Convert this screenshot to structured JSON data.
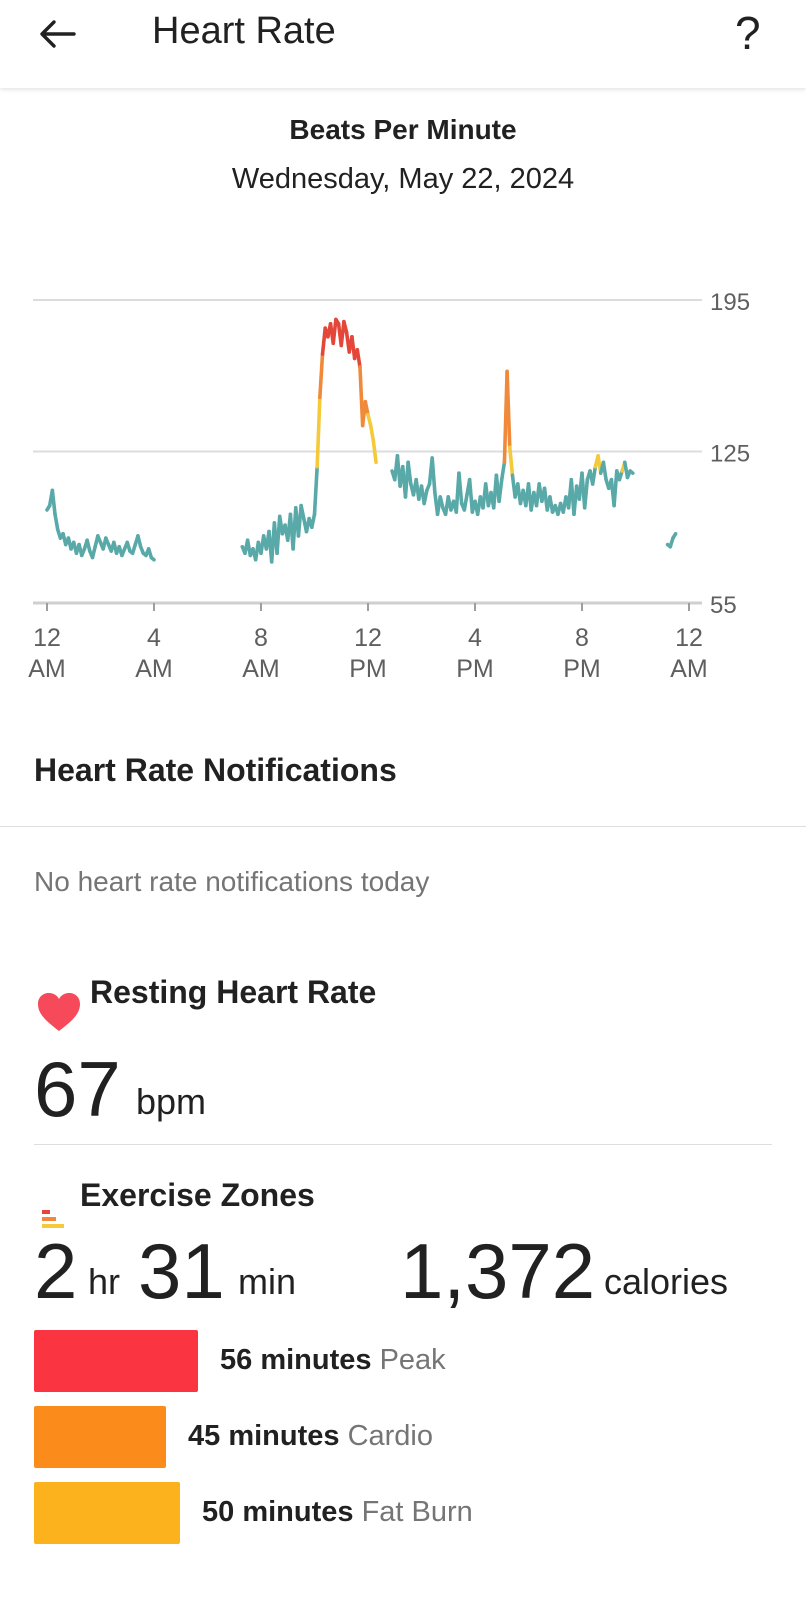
{
  "header": {
    "title": "Heart Rate",
    "help_label": "?"
  },
  "chart_header": {
    "title": "Beats Per Minute",
    "date": "Wednesday, May 22, 2024"
  },
  "chart_data": {
    "type": "line",
    "title": "Beats Per Minute",
    "xlabel": "",
    "ylabel": "",
    "xlim": [
      0,
      24
    ],
    "ylim": [
      55,
      195
    ],
    "y_ticks": [
      195,
      125,
      55
    ],
    "x_tick_labels": [
      {
        "top": "12",
        "bottom": "AM"
      },
      {
        "top": "4",
        "bottom": "AM"
      },
      {
        "top": "8",
        "bottom": "AM"
      },
      {
        "top": "12",
        "bottom": "PM"
      },
      {
        "top": "4",
        "bottom": "PM"
      },
      {
        "top": "8",
        "bottom": "PM"
      },
      {
        "top": "12",
        "bottom": "AM"
      }
    ],
    "grid": true,
    "zone_colors": {
      "normal": "#5aa9a9",
      "fat_burn": "#f4c93a",
      "cardio": "#f08a3a",
      "peak": "#e4473a"
    },
    "series": [
      {
        "points": [
          [
            0,
            98
          ],
          [
            0.1,
            100
          ],
          [
            0.2,
            107
          ],
          [
            0.3,
            96
          ],
          [
            0.4,
            89
          ],
          [
            0.5,
            85
          ],
          [
            0.6,
            87
          ],
          [
            0.7,
            82
          ],
          [
            0.8,
            85
          ],
          [
            0.9,
            80
          ],
          [
            1.0,
            83
          ],
          [
            1.1,
            78
          ],
          [
            1.2,
            82
          ],
          [
            1.3,
            77
          ],
          [
            1.4,
            80
          ],
          [
            1.5,
            84
          ],
          [
            1.6,
            79
          ],
          [
            1.7,
            76
          ],
          [
            1.8,
            81
          ],
          [
            1.9,
            86
          ],
          [
            2.0,
            83
          ],
          [
            2.1,
            80
          ],
          [
            2.2,
            85
          ],
          [
            2.3,
            82
          ],
          [
            2.4,
            79
          ],
          [
            2.5,
            83
          ],
          [
            2.6,
            78
          ],
          [
            2.7,
            81
          ],
          [
            2.8,
            77
          ],
          [
            2.9,
            80
          ],
          [
            3.0,
            83
          ],
          [
            3.1,
            79
          ],
          [
            3.2,
            78
          ],
          [
            3.3,
            82
          ],
          [
            3.4,
            86
          ],
          [
            3.5,
            81
          ],
          [
            3.6,
            78
          ],
          [
            3.7,
            77
          ],
          [
            3.8,
            80
          ],
          [
            3.9,
            76
          ],
          [
            4.0,
            75
          ]
        ]
      },
      {
        "points": [
          [
            7.3,
            81
          ],
          [
            7.4,
            78
          ],
          [
            7.5,
            84
          ],
          [
            7.6,
            77
          ],
          [
            7.7,
            80
          ],
          [
            7.8,
            75
          ],
          [
            7.9,
            83
          ],
          [
            8.0,
            78
          ],
          [
            8.1,
            86
          ],
          [
            8.2,
            80
          ],
          [
            8.3,
            88
          ],
          [
            8.4,
            74
          ],
          [
            8.5,
            92
          ],
          [
            8.6,
            78
          ],
          [
            8.7,
            95
          ],
          [
            8.8,
            87
          ],
          [
            8.9,
            91
          ],
          [
            9.0,
            84
          ],
          [
            9.1,
            96
          ],
          [
            9.2,
            80
          ],
          [
            9.3,
            99
          ],
          [
            9.4,
            86
          ],
          [
            9.5,
            100
          ],
          [
            9.6,
            94
          ],
          [
            9.7,
            88
          ],
          [
            9.8,
            94
          ],
          [
            9.9,
            90
          ],
          [
            10.0,
            96
          ],
          [
            10.1,
            118
          ],
          [
            10.2,
            150
          ],
          [
            10.3,
            170
          ],
          [
            10.4,
            182
          ],
          [
            10.5,
            178
          ],
          [
            10.6,
            184
          ],
          [
            10.7,
            175
          ],
          [
            10.8,
            186
          ],
          [
            10.9,
            184
          ],
          [
            11.0,
            174
          ],
          [
            11.1,
            185
          ],
          [
            11.2,
            180
          ],
          [
            11.3,
            171
          ],
          [
            11.4,
            178
          ],
          [
            11.5,
            168
          ],
          [
            11.6,
            172
          ],
          [
            11.7,
            164
          ],
          [
            11.8,
            137
          ],
          [
            11.9,
            148
          ],
          [
            12.0,
            142
          ],
          [
            12.1,
            137
          ],
          [
            12.2,
            130
          ],
          [
            12.3,
            120
          ]
        ]
      },
      {
        "points": [
          [
            12.9,
            116
          ],
          [
            13.0,
            112
          ],
          [
            13.1,
            123
          ],
          [
            13.2,
            109
          ],
          [
            13.3,
            118
          ],
          [
            13.4,
            104
          ],
          [
            13.5,
            120
          ],
          [
            13.6,
            110
          ],
          [
            13.7,
            105
          ],
          [
            13.8,
            112
          ],
          [
            13.9,
            103
          ],
          [
            14.0,
            109
          ],
          [
            14.1,
            101
          ],
          [
            14.2,
            107
          ],
          [
            14.3,
            110
          ],
          [
            14.4,
            122
          ],
          [
            14.5,
            106
          ],
          [
            14.6,
            96
          ],
          [
            14.7,
            104
          ],
          [
            14.8,
            99
          ],
          [
            14.9,
            96
          ],
          [
            15.0,
            104
          ],
          [
            15.1,
            98
          ],
          [
            15.2,
            102
          ],
          [
            15.3,
            97
          ],
          [
            15.4,
            115
          ],
          [
            15.5,
            101
          ],
          [
            15.6,
            98
          ],
          [
            15.7,
            105
          ],
          [
            15.8,
            112
          ],
          [
            15.9,
            97
          ],
          [
            16.0,
            102
          ],
          [
            16.1,
            96
          ],
          [
            16.2,
            104
          ],
          [
            16.3,
            99
          ],
          [
            16.4,
            110
          ],
          [
            16.5,
            100
          ],
          [
            16.6,
            106
          ],
          [
            16.7,
            99
          ],
          [
            16.8,
            114
          ],
          [
            16.9,
            102
          ],
          [
            17.0,
            112
          ],
          [
            17.1,
            120
          ],
          [
            17.2,
            162
          ],
          [
            17.3,
            127
          ],
          [
            17.4,
            114
          ],
          [
            17.5,
            104
          ],
          [
            17.6,
            110
          ],
          [
            17.7,
            101
          ],
          [
            17.8,
            107
          ],
          [
            17.9,
            100
          ],
          [
            18.0,
            110
          ],
          [
            18.1,
            98
          ],
          [
            18.2,
            106
          ],
          [
            18.3,
            100
          ],
          [
            18.4,
            110
          ],
          [
            18.5,
            102
          ],
          [
            18.6,
            108
          ],
          [
            18.7,
            98
          ],
          [
            18.8,
            104
          ],
          [
            18.9,
            97
          ],
          [
            19.0,
            100
          ],
          [
            19.1,
            96
          ],
          [
            19.2,
            101
          ],
          [
            19.3,
            97
          ],
          [
            19.4,
            104
          ],
          [
            19.5,
            99
          ],
          [
            19.6,
            112
          ],
          [
            19.7,
            96
          ],
          [
            19.8,
            109
          ],
          [
            19.9,
            103
          ],
          [
            20.0,
            115
          ],
          [
            20.1,
            99
          ],
          [
            20.2,
            112
          ],
          [
            20.3,
            116
          ],
          [
            20.4,
            110
          ],
          [
            20.5,
            118
          ],
          [
            20.6,
            123
          ],
          [
            20.7,
            115
          ],
          [
            20.8,
            120
          ],
          [
            20.9,
            112
          ],
          [
            21.0,
            108
          ],
          [
            21.1,
            112
          ],
          [
            21.2,
            100
          ],
          [
            21.3,
            116
          ],
          [
            21.4,
            112
          ],
          [
            21.5,
            116
          ],
          [
            21.6,
            120
          ],
          [
            21.7,
            113
          ],
          [
            21.8,
            116
          ],
          [
            21.9,
            115
          ]
        ]
      },
      {
        "points": [
          [
            23.2,
            82
          ],
          [
            23.3,
            81
          ],
          [
            23.4,
            85
          ],
          [
            23.5,
            87
          ]
        ]
      }
    ]
  },
  "notifications": {
    "title": "Heart Rate Notifications",
    "empty_text": "No heart rate notifications today"
  },
  "resting": {
    "title": "Resting Heart Rate",
    "value": "67",
    "unit": "bpm"
  },
  "zones": {
    "title": "Exercise Zones",
    "hours": "2",
    "hours_unit": "hr",
    "minutes": "31",
    "minutes_unit": "min",
    "calories": "1,372",
    "calories_unit": "calories",
    "items": [
      {
        "minutes": "56 minutes",
        "name": "Peak",
        "value": 56,
        "color": "#fb3442"
      },
      {
        "minutes": "45 minutes",
        "name": "Cardio",
        "value": 45,
        "color": "#fb8c1c"
      },
      {
        "minutes": "50 minutes",
        "name": "Fat Burn",
        "value": 50,
        "color": "#fbb21c"
      }
    ]
  }
}
